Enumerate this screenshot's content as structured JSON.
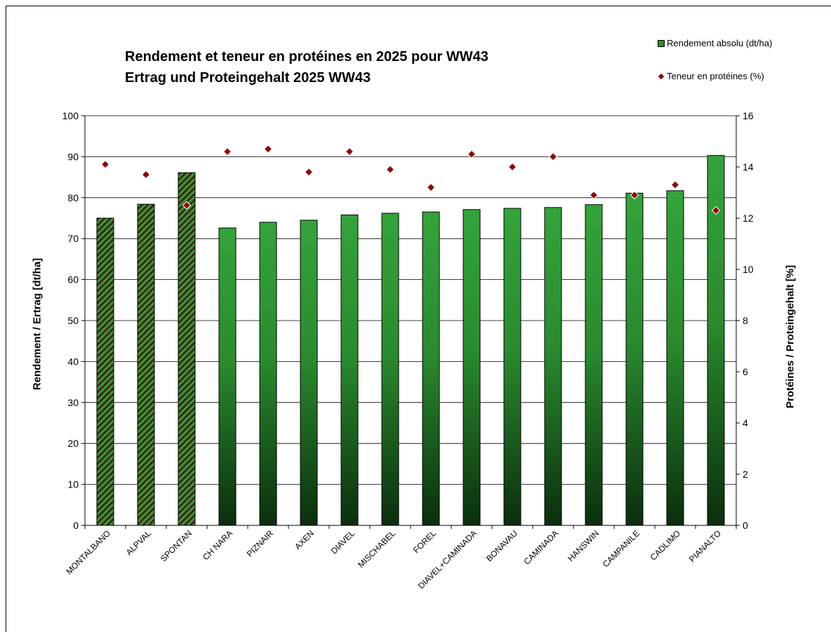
{
  "chart_data": {
    "type": "bar",
    "title": "Rendement et teneur en protéines en 2025 pour WW43",
    "subtitle": "Ertrag und Proteingehalt 2025 WW43",
    "ylabel": "Rendement / Ertrag [dt/ha]",
    "y2label": "Protéines / Proteingehalt [%]",
    "ylim": [
      0,
      100
    ],
    "y2lim": [
      0,
      16
    ],
    "yticks": [
      "0",
      "10",
      "20",
      "30",
      "40",
      "50",
      "60",
      "70",
      "80",
      "90",
      "100"
    ],
    "y2ticks": [
      "0",
      "2",
      "4",
      "6",
      "8",
      "10",
      "12",
      "14",
      "16"
    ],
    "grid": true,
    "legend_position": "top-right",
    "categories": [
      "MONTALBANO",
      "ALPVAL",
      "SPONTAN",
      "CH NARA",
      "PIZNAIR",
      "AXEN",
      "DIAVEL",
      "MISCHABEL",
      "FOREL",
      "DIAVEL+CAMINADA",
      "BONAVAU",
      "CAMINADA",
      "HANSWIN",
      "CAMPANILE",
      "CADLIMO",
      "PIANALTO"
    ],
    "hatched_categories": [
      "MONTALBANO",
      "ALPVAL",
      "SPONTAN"
    ],
    "series": [
      {
        "name": "Rendement absolu (dt/ha)",
        "type": "bar",
        "axis": "left",
        "color": "#2f9a35",
        "values": [
          75.0,
          78.4,
          86.1,
          72.6,
          74.0,
          74.5,
          75.8,
          76.2,
          76.5,
          77.1,
          77.4,
          77.6,
          78.3,
          81.1,
          81.7,
          90.3
        ]
      },
      {
        "name": "Teneur en protéines (%)",
        "type": "scatter",
        "axis": "right",
        "color": "#8b0a0a",
        "values": [
          14.1,
          13.7,
          12.5,
          14.6,
          14.7,
          13.8,
          14.6,
          13.9,
          13.2,
          14.5,
          14.0,
          14.4,
          12.9,
          12.9,
          13.3,
          12.3
        ]
      }
    ]
  }
}
